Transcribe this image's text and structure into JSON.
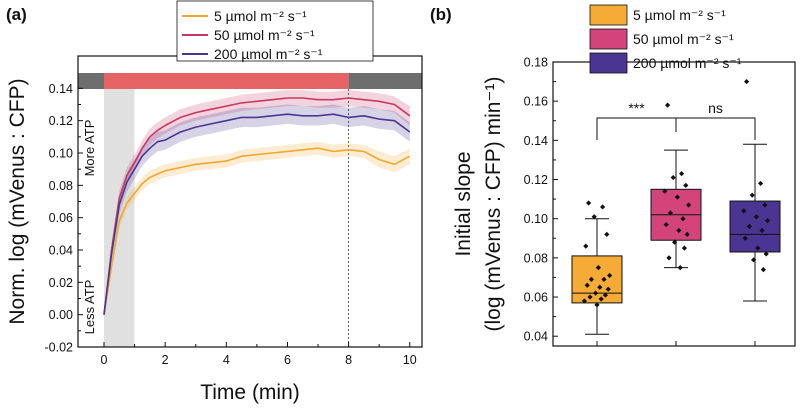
{
  "chart_data": [
    {
      "panel": "(a)",
      "type": "line",
      "xlabel": "Time (min)",
      "ylabel": "Norm. log (mVenus : CFP)",
      "xlim": [
        -0.85,
        10.4
      ],
      "ylim": [
        -0.02,
        0.16
      ],
      "xticks": [
        "0",
        "2",
        "4",
        "6",
        "8",
        "10"
      ],
      "yticks": [
        "-0.02",
        "0.00",
        "0.02",
        "0.04",
        "0.06",
        "0.08",
        "0.10",
        "0.12",
        "0.14"
      ],
      "side_labels": {
        "top": "More ATP",
        "bottom": "Less ATP"
      },
      "legend": "top-center",
      "light_bar": {
        "dark_until": 0,
        "light_from": 0,
        "light_to": 8,
        "dark_after": 8
      },
      "shaded_interval": [
        0,
        1
      ],
      "vline_x": 8,
      "x": [
        0,
        0.25,
        0.5,
        0.75,
        1,
        1.25,
        1.5,
        1.75,
        2,
        2.5,
        3,
        3.5,
        4,
        4.5,
        5,
        5.5,
        6,
        6.5,
        7,
        7.5,
        8,
        8.5,
        9,
        9.5,
        10
      ],
      "series": [
        {
          "name": "5 µmol m⁻² s⁻¹",
          "color": "#f0a830",
          "values": [
            0,
            0.03,
            0.058,
            0.069,
            0.075,
            0.081,
            0.085,
            0.087,
            0.089,
            0.091,
            0.093,
            0.094,
            0.095,
            0.098,
            0.099,
            0.1,
            0.101,
            0.102,
            0.103,
            0.101,
            0.102,
            0.101,
            0.096,
            0.093,
            0.098
          ],
          "err": [
            0,
            0.003,
            0.004,
            0.004,
            0.004,
            0.004,
            0.004,
            0.004,
            0.004,
            0.004,
            0.004,
            0.004,
            0.004,
            0.004,
            0.004,
            0.004,
            0.004,
            0.004,
            0.004,
            0.004,
            0.004,
            0.004,
            0.005,
            0.005,
            0.005
          ]
        },
        {
          "name": "50 µmol m⁻² s⁻¹",
          "color": "#c83763",
          "values": [
            0,
            0.04,
            0.072,
            0.086,
            0.094,
            0.103,
            0.11,
            0.114,
            0.117,
            0.122,
            0.125,
            0.127,
            0.129,
            0.131,
            0.132,
            0.133,
            0.134,
            0.134,
            0.133,
            0.133,
            0.134,
            0.133,
            0.132,
            0.13,
            0.123
          ],
          "err": [
            0,
            0.004,
            0.005,
            0.005,
            0.005,
            0.005,
            0.005,
            0.005,
            0.005,
            0.005,
            0.005,
            0.005,
            0.005,
            0.005,
            0.005,
            0.005,
            0.005,
            0.005,
            0.005,
            0.005,
            0.005,
            0.005,
            0.005,
            0.005,
            0.006
          ]
        },
        {
          "name": "200 µmol m⁻² s⁻¹",
          "color": "#4b3691",
          "values": [
            0,
            0.038,
            0.068,
            0.082,
            0.09,
            0.098,
            0.103,
            0.107,
            0.108,
            0.113,
            0.116,
            0.118,
            0.12,
            0.122,
            0.122,
            0.123,
            0.124,
            0.123,
            0.123,
            0.124,
            0.122,
            0.123,
            0.121,
            0.12,
            0.113
          ],
          "err": [
            0,
            0.005,
            0.006,
            0.006,
            0.006,
            0.006,
            0.006,
            0.006,
            0.006,
            0.006,
            0.006,
            0.006,
            0.006,
            0.006,
            0.006,
            0.006,
            0.006,
            0.006,
            0.006,
            0.006,
            0.006,
            0.006,
            0.006,
            0.006,
            0.006
          ]
        }
      ]
    },
    {
      "panel": "(b)",
      "type": "box",
      "ylabel_line1": "Initial slope",
      "ylabel_line2": "(log (mVenus : CFP) min⁻¹)",
      "ylim": [
        0.035,
        0.18
      ],
      "yticks": [
        "0.04",
        "0.06",
        "0.08",
        "0.10",
        "0.12",
        "0.14",
        "0.16",
        "0.18"
      ],
      "legend": "top",
      "significance": [
        {
          "from": 0,
          "to": 1,
          "label": "***"
        },
        {
          "from": 1,
          "to": 2,
          "label": "ns"
        }
      ],
      "groups": [
        {
          "name": "5 µmol m⁻² s⁻¹",
          "color": "#f5ab35",
          "whisker_low": 0.041,
          "q1": 0.057,
          "median": 0.062,
          "q3": 0.081,
          "whisker_high": 0.1,
          "points": [
            0.108,
            0.106,
            0.101,
            0.092,
            0.086,
            0.075,
            0.071,
            0.069,
            0.069,
            0.066,
            0.065,
            0.064,
            0.062,
            0.061,
            0.06,
            0.059,
            0.058,
            0.056
          ]
        },
        {
          "name": "50 µmol m⁻² s⁻¹",
          "color": "#d3457a",
          "whisker_low": 0.075,
          "q1": 0.089,
          "median": 0.102,
          "q3": 0.115,
          "whisker_high": 0.135,
          "points": [
            0.158,
            0.123,
            0.121,
            0.117,
            0.114,
            0.111,
            0.107,
            0.103,
            0.1,
            0.097,
            0.094,
            0.092,
            0.088,
            0.085,
            0.08,
            0.075
          ]
        },
        {
          "name": "200 µmol m⁻² s⁻¹",
          "color": "#4a3593",
          "whisker_low": 0.058,
          "q1": 0.083,
          "median": 0.092,
          "q3": 0.109,
          "whisker_high": 0.138,
          "points": [
            0.17,
            0.118,
            0.112,
            0.107,
            0.104,
            0.101,
            0.099,
            0.096,
            0.094,
            0.09,
            0.085,
            0.082,
            0.079,
            0.074
          ]
        }
      ]
    }
  ]
}
